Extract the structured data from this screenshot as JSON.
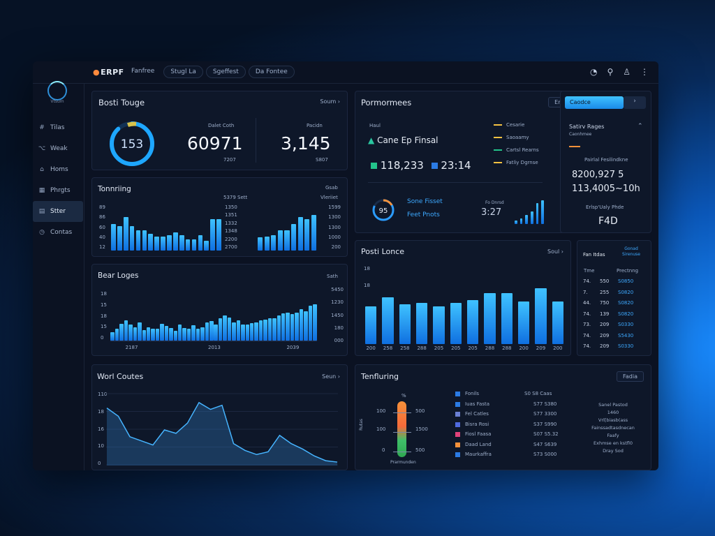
{
  "topbar": {
    "brand": "ERPF",
    "tabs": [
      "Fanfree",
      "Stugl La",
      "Sgeffest",
      "Da Fontee"
    ]
  },
  "sidebar": {
    "user": "Vtsum",
    "items": [
      {
        "label": "Tilas",
        "icon": "hashtag-icon"
      },
      {
        "label": "Weak",
        "icon": "filter-icon"
      },
      {
        "label": "Homs",
        "icon": "home-icon"
      },
      {
        "label": "Phrgts",
        "icon": "grid-icon"
      },
      {
        "label": "Stter",
        "icon": "stack-icon",
        "active": true
      },
      {
        "label": "Contas",
        "icon": "clock-icon"
      }
    ]
  },
  "overview": {
    "title": "Bosti Touge",
    "action": "Soum",
    "gauge_value": "153",
    "gauge_fraction": 0.88,
    "stat1_label": "Dalet Coth",
    "stat1_value": "60971",
    "stat1_sub": "7207",
    "stat2_label": "Pacidn",
    "stat2_value": "3,145",
    "stat2_sub": "S807"
  },
  "performance": {
    "title": "Pormormees",
    "action": "Eml",
    "small_label": "Haul",
    "headline": "Cane Ep Finsal",
    "value1": "118,233",
    "value2": "23:14",
    "legend": [
      {
        "label": "Cesarie",
        "color": "#f5c242"
      },
      {
        "label": "Saoaamy",
        "color": "#f5c242"
      },
      {
        "label": "Cartsl Rearns",
        "color": "#23c48b"
      },
      {
        "label": "Fatliy Dgrnse",
        "color": "#f5c242"
      }
    ],
    "ring_value": "95",
    "ring_fraction": 0.82,
    "ring_label1": "Sone Fisset",
    "ring_label2": "Feet Pnots",
    "mini_label": "Fo Dnrsd",
    "mini_value": "3:27",
    "mini_bars": [
      0.15,
      0.22,
      0.35,
      0.5,
      0.82,
      0.95
    ]
  },
  "right_panel": {
    "button": "Caodce",
    "section": "Satirv Rages",
    "section_sub": "Caonhmee",
    "label1": "Pairlal Fesilindkne",
    "value1": "8200,927 5",
    "value2": "113,4005~10h",
    "label2": "Erlsp'Ualy Phde",
    "value3": "F4D"
  },
  "tonning": {
    "title": "Tonnriing",
    "right_header_top": "Gsab",
    "col_header1": "5379 Sett",
    "col_header2": "Vleriiet",
    "mid_labels": [
      "1350",
      "1351",
      "1332",
      "1348",
      "2200",
      "2700"
    ],
    "left_ylabels": [
      "89",
      "86",
      "60",
      "40",
      "12"
    ],
    "right_ylabels": [
      "1599",
      "1300",
      "1300",
      "1000",
      "200"
    ],
    "bars_left": [
      0.6,
      0.55,
      0.75,
      0.55,
      0.45,
      0.45,
      0.38,
      0.32,
      0.32,
      0.35,
      0.4,
      0.35,
      0.25,
      0.25,
      0.35,
      0.22,
      0.7,
      0.7
    ],
    "bars_right": [
      0.3,
      0.32,
      0.35,
      0.45,
      0.45,
      0.6,
      0.75,
      0.7,
      0.8
    ]
  },
  "bear": {
    "title": "Bear Loges",
    "header_right": "Sath",
    "left_ylabels": [
      "18",
      "15",
      "18",
      "15",
      "0"
    ],
    "right_ylabels": [
      "5450",
      "1230",
      "1450",
      "180",
      "000"
    ],
    "xlabels": [
      "2187",
      "2013",
      "2039"
    ],
    "bars": [
      0.18,
      0.24,
      0.35,
      0.42,
      0.33,
      0.27,
      0.38,
      0.22,
      0.28,
      0.25,
      0.24,
      0.35,
      0.3,
      0.26,
      0.2,
      0.34,
      0.26,
      0.24,
      0.32,
      0.25,
      0.28,
      0.38,
      0.4,
      0.33,
      0.46,
      0.52,
      0.48,
      0.38,
      0.42,
      0.33,
      0.34,
      0.36,
      0.38,
      0.42,
      0.44,
      0.47,
      0.47,
      0.52,
      0.56,
      0.58,
      0.55,
      0.58,
      0.65,
      0.61,
      0.72,
      0.75
    ]
  },
  "post": {
    "title": "Posti Lonce",
    "action": "Soul",
    "ylabels": [
      "18",
      "18"
    ],
    "xlabels": [
      "200",
      "258",
      "258",
      "288",
      "205",
      "205",
      "205",
      "288",
      "288",
      "200",
      "209",
      "200"
    ],
    "bars": [
      0.55,
      0.68,
      0.58,
      0.6,
      0.55,
      0.6,
      0.64,
      0.75,
      0.74,
      0.62,
      0.82,
      0.62
    ]
  },
  "table": {
    "header1": "Fan Itdas",
    "header2": "Gonad Sirenuse",
    "col1": "Tme",
    "col2": "Prectnng",
    "rows": [
      {
        "a": "74.",
        "b": "550",
        "c": "S0850"
      },
      {
        "a": "7.",
        "b": "255",
        "c": "S0820"
      },
      {
        "a": "44.",
        "b": "750",
        "c": "S0820"
      },
      {
        "a": "74.",
        "b": "139",
        "c": "S0820"
      },
      {
        "a": "73.",
        "b": "209",
        "c": "S0330"
      },
      {
        "a": "74.",
        "b": "209",
        "c": "S5430"
      },
      {
        "a": "74.",
        "b": "209",
        "c": "S0330"
      }
    ]
  },
  "world": {
    "title": "Worl Coutes",
    "action": "Seun",
    "ylabels": [
      "110",
      "18",
      "16",
      "10",
      "0"
    ],
    "points": [
      0.82,
      0.7,
      0.4,
      0.34,
      0.28,
      0.5,
      0.45,
      0.6,
      0.9,
      0.8,
      0.86,
      0.3,
      0.2,
      0.14,
      0.18,
      0.42,
      0.3,
      0.22,
      0.12,
      0.05,
      0.03
    ]
  },
  "tenfluring": {
    "title": "Tenfluring",
    "button": "Fadia",
    "y_title": "Rutas",
    "gauge_ylabels": [
      "100",
      "100",
      "0"
    ],
    "gauge_ylabels_right": [
      "500",
      "1500",
      "500"
    ],
    "gauge_footer": "Prarmunden",
    "gauge_top": "%",
    "legend_header_right": "S0 S8 Caas",
    "legend": [
      {
        "label": "Fonils",
        "value": "",
        "color": "#2b7be4"
      },
      {
        "label": "Iuas Fasta",
        "value": "S77 S380",
        "color": "#2b7be4"
      },
      {
        "label": "Fel Catles",
        "value": "S77 3300",
        "color": "#6a7fd4"
      },
      {
        "label": "Bisra Rosi",
        "value": "S37 S990",
        "color": "#4f6adf"
      },
      {
        "label": "Fiosl Faasa",
        "value": "S07 S5.32",
        "color": "#e0427a"
      },
      {
        "label": "Daad Land",
        "value": "S47 S639",
        "color": "#f5913a"
      },
      {
        "label": "Maurkaffra",
        "value": "S73 S000",
        "color": "#2b7be4"
      }
    ],
    "notes": [
      "Sanel Pastod",
      "1460",
      "Vrl[biasb(ass",
      "Fainssadtasdnecan",
      "Faafy",
      "Exhmse en kstfl0",
      "Dray Sod"
    ]
  }
}
